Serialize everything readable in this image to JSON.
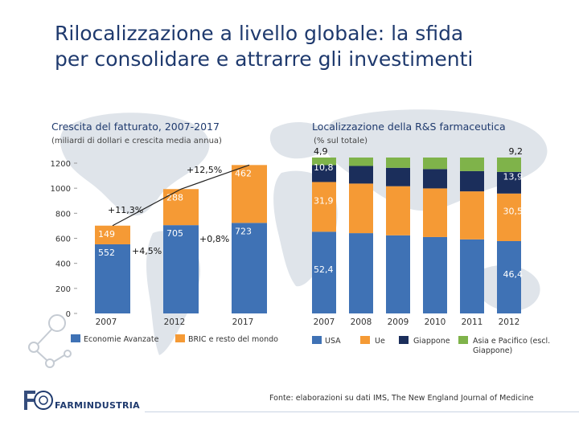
{
  "slide": {
    "title_line1": "Rilocalizzazione a livello globale: la sfida",
    "title_line2": "per consolidare e attrarre gli investimenti",
    "brand": "FARMINDUSTRIA",
    "source": "Fonte: elaborazioni su dati IMS, The New England Journal of Medicine"
  },
  "colors": {
    "title": "#1f3a6e",
    "blue": "#3f72b5",
    "orange": "#f59a35",
    "navy": "#1b2e5b",
    "green": "#7fb34a"
  },
  "chart_data": [
    {
      "type": "bar",
      "stacked": true,
      "title": "Crescita del fatturato, 2007-2017",
      "subtitle": "(miliardi di dollari e crescita media annua)",
      "categories": [
        "2007",
        "2012",
        "2017"
      ],
      "series": [
        {
          "name": "Economie Avanzate",
          "values": [
            552,
            705,
            723
          ],
          "value_labels": [
            "552",
            "705",
            "723"
          ]
        },
        {
          "name": "BRIC e resto del mondo",
          "values": [
            149,
            288,
            462
          ],
          "value_labels": [
            "149",
            "288",
            "462"
          ]
        }
      ],
      "growth_annotations": [
        "+11,3%",
        "+4,5%",
        "+12,5%",
        "+0,8%"
      ],
      "yticks": [
        0,
        200,
        400,
        600,
        800,
        1000,
        1200
      ],
      "ytick_labels": [
        "0",
        "200",
        "400",
        "600",
        "800",
        "1000",
        "1200"
      ],
      "ylim": [
        0,
        1250
      ],
      "legend": "bottom"
    },
    {
      "type": "bar",
      "stacked": true,
      "title": "Localizzazione della R&S farmaceutica",
      "subtitle": "(% sul totale)",
      "categories": [
        "2007",
        "2008",
        "2009",
        "2010",
        "2011",
        "2012"
      ],
      "series": [
        {
          "name": "USA",
          "values": [
            52.4,
            51.5,
            50.1,
            49.0,
            47.5,
            46.4
          ],
          "labels": {
            "first": "52,4",
            "last": "46,4"
          }
        },
        {
          "name": "Ue",
          "values": [
            31.9,
            31.8,
            31.5,
            31.2,
            30.8,
            30.5
          ],
          "labels": {
            "first": "31,9",
            "last": "30,5"
          }
        },
        {
          "name": "Giappone",
          "values": [
            10.8,
            11.3,
            11.8,
            12.4,
            13.0,
            13.9
          ],
          "labels": {
            "first": "10,8",
            "last": "13,9"
          }
        },
        {
          "name": "Asia e Pacifico (escl. Giappone)",
          "values": [
            4.9,
            5.4,
            6.6,
            7.4,
            8.7,
            9.2
          ],
          "labels": {
            "first": "4,9",
            "last": "9,2"
          }
        }
      ],
      "ylim": [
        0,
        100
      ],
      "legend": "bottom"
    }
  ]
}
